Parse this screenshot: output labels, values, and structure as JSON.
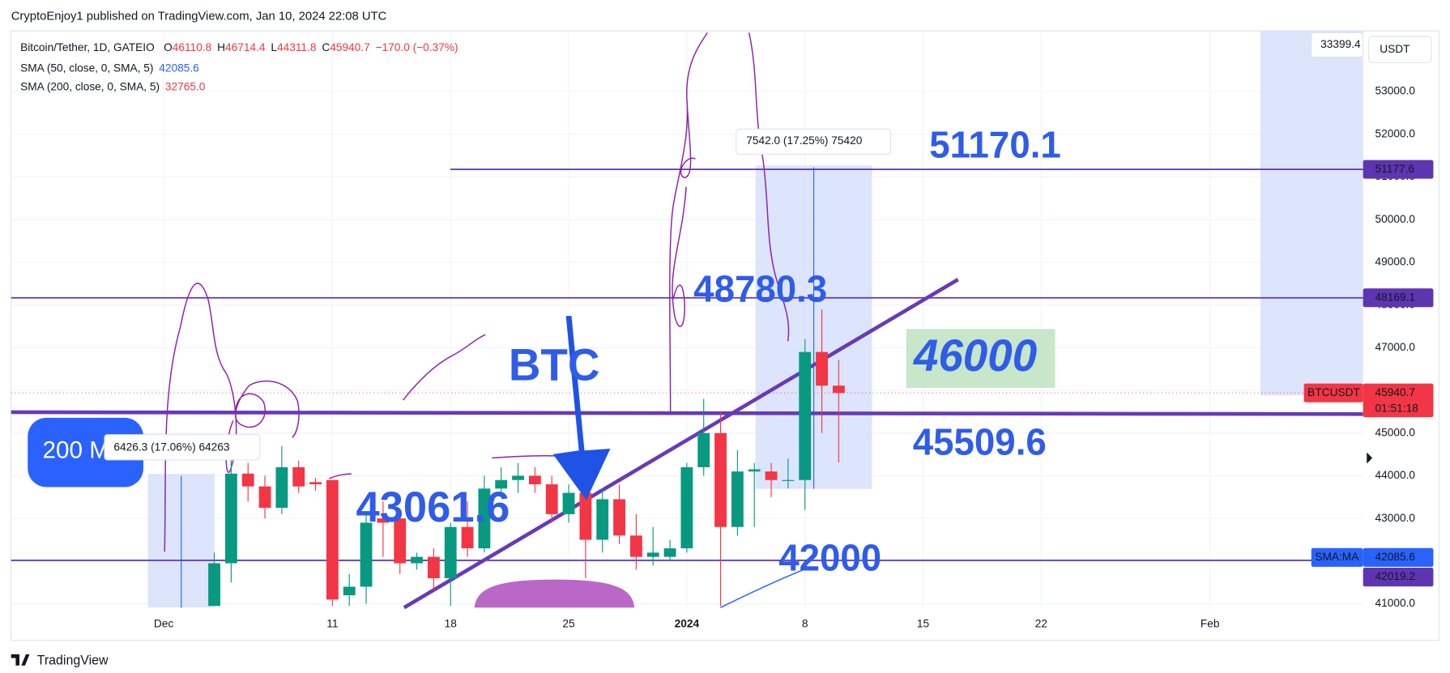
{
  "chart_data": {
    "type": "candlestick",
    "byline": "CryptoEnjoy1 published on TradingView.com, Jan 10, 2024 22:08 UTC",
    "symbol": "Bitcoin/Tether, 1D, GATEIO",
    "ohlc_legend": [
      {
        "key": "O",
        "value": "46110.8"
      },
      {
        "key": "H",
        "value": "46714.4"
      },
      {
        "key": "L",
        "value": "44311.8"
      },
      {
        "key": "C",
        "value": "45940.7"
      }
    ],
    "change": "−170.0 (−0.37%)",
    "indicators": [
      {
        "name": "SMA (50, close, 0, SMA, 5)",
        "value": "42085.6",
        "color": "#2962ff"
      },
      {
        "name": "SMA (200, close, 0, SMA, 5)",
        "value": "32765.0",
        "color": "#f23645"
      }
    ],
    "currency": "USDT",
    "top_tag": 33399.4,
    "footer": "TradingView",
    "up_color": "#089981",
    "down_color": "#f23645",
    "grid": true,
    "x": [
      3,
      4,
      5,
      6,
      7,
      8,
      9,
      10,
      11,
      12,
      13,
      14,
      15,
      16,
      17,
      18,
      19,
      20,
      21,
      22,
      23,
      24,
      25,
      26,
      27,
      28,
      29,
      30,
      31,
      32,
      33,
      34,
      35,
      36,
      37,
      38,
      39,
      40
    ],
    "open": [
      40950,
      41950,
      44050,
      43750,
      43250,
      44200,
      43850,
      43900,
      41200,
      41400,
      43000,
      43000,
      41950,
      42100,
      41600,
      42800,
      42300,
      43700,
      43900,
      44000,
      43800,
      43100,
      43600,
      42500,
      43450,
      42600,
      42100,
      42100,
      42300,
      44200,
      45000,
      42800,
      44100,
      44100,
      43900,
      43900,
      46900,
      46110.8
    ],
    "high": [
      42200,
      44450,
      44300,
      44000,
      44700,
      44350,
      43950,
      43900,
      41700,
      43100,
      43400,
      43100,
      42200,
      42300,
      42900,
      43400,
      44000,
      44200,
      44300,
      44200,
      44000,
      43800,
      43800,
      43700,
      43800,
      43100,
      42800,
      42500,
      44300,
      45800,
      45500,
      44600,
      44300,
      44300,
      44400,
      47200,
      47900,
      46714.4
    ],
    "low": [
      40950,
      41500,
      43400,
      43000,
      43100,
      43600,
      43650,
      40950,
      40950,
      41000,
      42100,
      41700,
      41800,
      41300,
      40950,
      42100,
      42200,
      43500,
      43600,
      43600,
      42900,
      42900,
      41600,
      42200,
      42400,
      41800,
      41900,
      42000,
      42200,
      44000,
      40950,
      42600,
      42800,
      43500,
      43700,
      43200,
      45000,
      44311.8
    ],
    "close": [
      41950,
      44050,
      43750,
      43250,
      44200,
      43750,
      43800,
      41100,
      41400,
      42900,
      42900,
      41950,
      42100,
      41600,
      42800,
      42300,
      43700,
      43900,
      44000,
      43800,
      43100,
      43600,
      42500,
      43450,
      42600,
      42100,
      42200,
      42300,
      44200,
      45000,
      42800,
      44100,
      44150,
      43900,
      43900,
      46900,
      46110.8,
      45940.7
    ],
    "xlim": [
      -9.04,
      71.07
    ],
    "xticks": [
      {
        "value": 0,
        "label": "Dec"
      },
      {
        "value": 10,
        "label": "11"
      },
      {
        "value": 17,
        "label": "18"
      },
      {
        "value": 24,
        "label": "25"
      },
      {
        "value": 31,
        "label": "2024"
      },
      {
        "value": 38,
        "label": "8"
      },
      {
        "value": 45,
        "label": "15"
      },
      {
        "value": 52,
        "label": "22"
      },
      {
        "value": 62,
        "label": "Feb"
      }
    ],
    "ylim": [
      40912,
      54423
    ],
    "yticks": [
      {
        "value": 41000,
        "label": "41000.0"
      },
      {
        "value": 42000,
        "label": "42000.0"
      },
      {
        "value": 43000,
        "label": "43000.0"
      },
      {
        "value": 44000,
        "label": "44000.0"
      },
      {
        "value": 45000,
        "label": "45000.0"
      },
      {
        "value": 46000,
        "label": "46000.0"
      },
      {
        "value": 47000,
        "label": "47000.0"
      },
      {
        "value": 48000,
        "label": "48000.0"
      },
      {
        "value": 49000,
        "label": "49000.0"
      },
      {
        "value": 50000,
        "label": "50000.0"
      },
      {
        "value": 51000,
        "label": "51000.0"
      },
      {
        "value": 52000,
        "label": "52000.0"
      },
      {
        "value": 53000,
        "label": "53000.0"
      }
    ],
    "price_tags": [
      {
        "value": 51177.6,
        "color": "#5e35b1"
      },
      {
        "value": 48169.1,
        "color": "#5e35b1"
      },
      {
        "name": "BTCUSDT",
        "value": 45940.7,
        "color": "#f23645",
        "countdown": "01:51:18"
      },
      {
        "name": "SMA:MA",
        "value": 42085.6,
        "color": "#2962ff"
      },
      {
        "value": 42019.2,
        "color": "#5e35b1"
      }
    ],
    "annotations": {
      "a1": "51170.1",
      "a2": "48780.3",
      "a3": "46000",
      "a4": "45509.6",
      "a5": "43061.6",
      "a6": "42000",
      "a7": "BTC",
      "a8": "200 M",
      "m1": "7542.0 (17.25%) 75420",
      "m2": "6426.3 (17.06%) 64263"
    }
  }
}
